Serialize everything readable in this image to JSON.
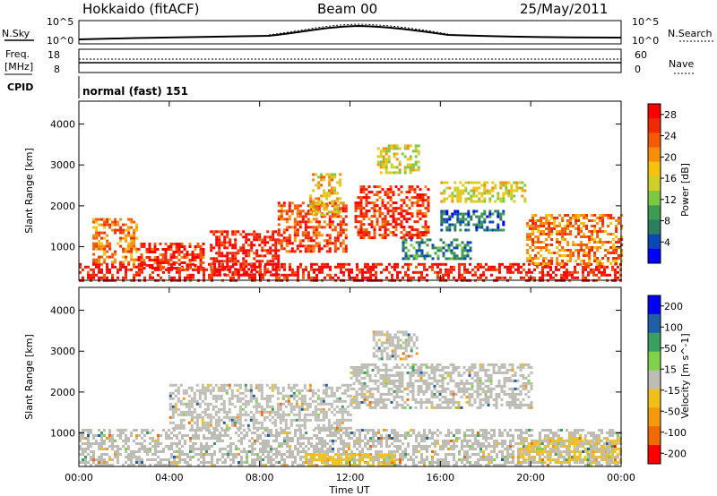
{
  "header": {
    "station": "Hokkaido (fitACF)",
    "beam": "Beam 00",
    "date": "25/May/2011"
  },
  "top_panels": {
    "nsky_label": "N.Sky",
    "nsearch_label": "N.Search",
    "freq_label_1": "Freq.",
    "freq_label_2": "[MHz]",
    "nave_label": "Nave",
    "cpid_label": "CPID",
    "cpid_value": "normal (fast) 151",
    "log_left_top": "10^5",
    "log_left_bottom": "10^0",
    "log_right_top": "10^5",
    "log_right_bottom": "10^0",
    "freq_tick_top": "18",
    "freq_tick_bottom": "8",
    "nave_tick_top": "60",
    "nave_tick_bottom": "0"
  },
  "chart_data": [
    {
      "type": "heatmap",
      "title": "",
      "xlabel": "Time UT",
      "ylabel": "Slant Range [km]",
      "x_ticks": [
        "00:00",
        "04:00",
        "08:00",
        "12:00",
        "16:00",
        "20:00",
        "00:00"
      ],
      "y_ticks": [
        1000,
        2000,
        3000,
        4000
      ],
      "xlim_hours": [
        0,
        24
      ],
      "ylim_km": [
        180,
        4560
      ],
      "colorbar_label": "Power [dB]",
      "colorbar_ticks": [
        "4",
        "8",
        "12",
        "16",
        "20",
        "24",
        "28"
      ],
      "colorbar_range": [
        0,
        30
      ],
      "colors": [
        "#0000ff",
        "#0a49b4",
        "#2e7d60",
        "#3d9c50",
        "#7cc842",
        "#ccd129",
        "#f5c20f",
        "#f88e0a",
        "#f45a07",
        "#ef2a05",
        "#ff0000"
      ],
      "regions": [
        {
          "t": [
            0.0,
            24.0
          ],
          "r": [
            200,
            600
          ],
          "v": 28
        },
        {
          "t": [
            0.6,
            2.6
          ],
          "r": [
            600,
            1700
          ],
          "v": 22
        },
        {
          "t": [
            2.6,
            5.5
          ],
          "r": [
            500,
            1100
          ],
          "v": 26
        },
        {
          "t": [
            5.8,
            8.8
          ],
          "r": [
            300,
            1400
          ],
          "v": 28
        },
        {
          "t": [
            8.8,
            11.8
          ],
          "r": [
            900,
            2100
          ],
          "v": 24
        },
        {
          "t": [
            10.2,
            11.6
          ],
          "r": [
            1800,
            2800
          ],
          "v": 18
        },
        {
          "t": [
            12.2,
            15.5
          ],
          "r": [
            1200,
            2500
          ],
          "v": 26
        },
        {
          "t": [
            14.3,
            17.3
          ],
          "r": [
            700,
            1200
          ],
          "v": 8
        },
        {
          "t": [
            16.0,
            19.8
          ],
          "r": [
            2100,
            2600
          ],
          "v": 16
        },
        {
          "t": [
            16.0,
            18.8
          ],
          "r": [
            1400,
            1900
          ],
          "v": 6
        },
        {
          "t": [
            19.8,
            24.0
          ],
          "r": [
            600,
            1800
          ],
          "v": 22
        },
        {
          "t": [
            13.2,
            15.0
          ],
          "r": [
            2800,
            3500
          ],
          "v": 16
        }
      ]
    },
    {
      "type": "heatmap",
      "title": "",
      "xlabel": "Time UT",
      "ylabel": "Slant Range [km]",
      "x_ticks": [
        "00:00",
        "04:00",
        "08:00",
        "12:00",
        "16:00",
        "20:00",
        "00:00"
      ],
      "y_ticks": [
        1000,
        2000,
        3000,
        4000
      ],
      "xlim_hours": [
        0,
        24
      ],
      "ylim_km": [
        180,
        4560
      ],
      "colorbar_label": "Velocity [m s^-1]",
      "colorbar_ticks": [
        "200",
        "100",
        "50",
        "15",
        "-15",
        "-50",
        "-100",
        "-200"
      ],
      "colorbar_range": [
        -250,
        250
      ],
      "colors": [
        "#0000ff",
        "#1f5fa8",
        "#3aa060",
        "#7fd24a",
        "#bdbdb5",
        "#f0c01a",
        "#f59a10",
        "#f06a08",
        "#ff0000"
      ],
      "regions": [
        {
          "t": [
            0.0,
            24.0
          ],
          "r": [
            200,
            1100
          ],
          "v": 0
        },
        {
          "t": [
            4.0,
            12.0
          ],
          "r": [
            1100,
            2200
          ],
          "v": 0
        },
        {
          "t": [
            12.0,
            20.0
          ],
          "r": [
            1600,
            2700
          ],
          "v": 0
        },
        {
          "t": [
            10.0,
            14.0
          ],
          "r": [
            200,
            500
          ],
          "v": -60
        },
        {
          "t": [
            19.5,
            24.0
          ],
          "r": [
            300,
            900
          ],
          "v": -30
        },
        {
          "t": [
            13.0,
            15.0
          ],
          "r": [
            2800,
            3500
          ],
          "v": 0
        }
      ]
    }
  ]
}
